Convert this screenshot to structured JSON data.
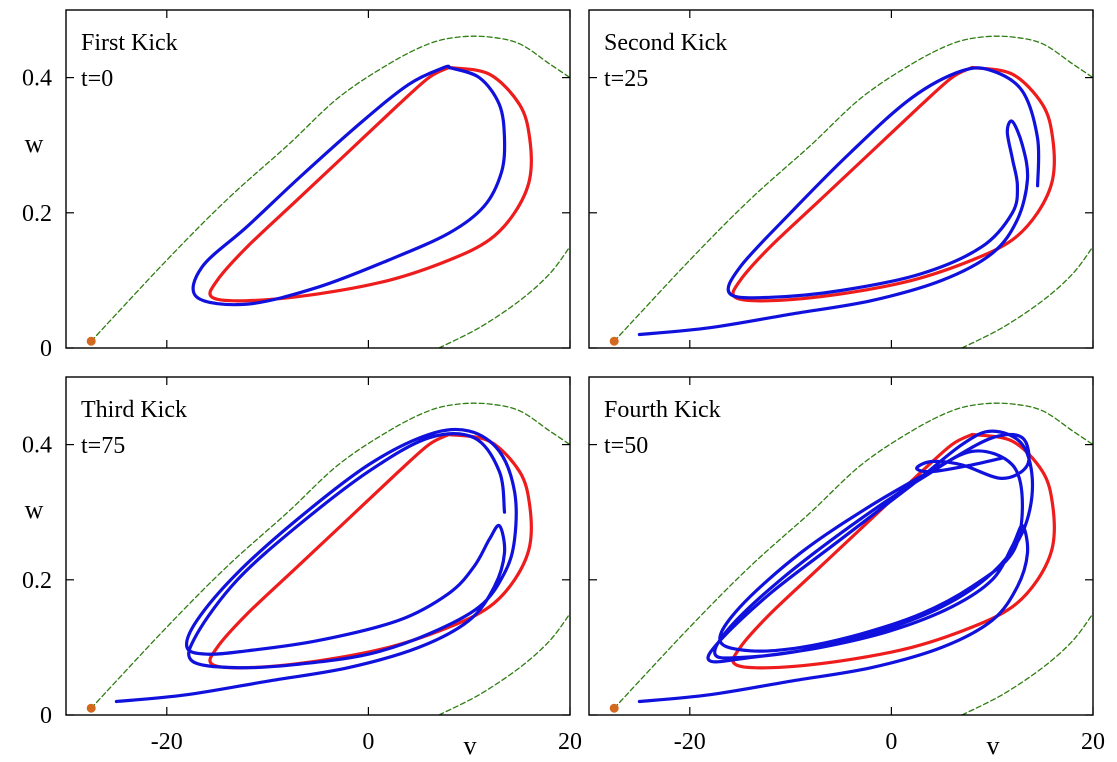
{
  "figure": {
    "x_axis_label": "v",
    "y_axis_label": "w"
  },
  "chart_data": [
    {
      "type": "line",
      "title": "First Kick",
      "subtitle": "t=0",
      "xlabel": "",
      "ylabel": "w",
      "xlim": [
        -30,
        20
      ],
      "ylim": [
        0,
        0.5
      ],
      "x_ticks": [
        "-20",
        "0",
        "20"
      ],
      "y_ticks": [
        "0",
        "0.2",
        "0.4"
      ],
      "show_x_tick_labels": false,
      "show_y_tick_labels": true,
      "grid": false,
      "colors": {
        "limit_cycle": "#ee1c1c",
        "trajectory": "#1111dd",
        "nullcline": "#2e7d12",
        "fixed_point": "#d2691e"
      },
      "point": {
        "x": -27.5,
        "y": 0.01
      },
      "series": [
        {
          "role": "nullcline",
          "style": "dashed",
          "color": "#2e7d12",
          "x": [
            -27.5,
            -20,
            -14,
            -8,
            -3,
            2,
            6,
            9,
            12,
            15,
            18,
            20
          ],
          "y": [
            0.01,
            0.13,
            0.22,
            0.3,
            0.37,
            0.42,
            0.45,
            0.46,
            0.46,
            0.45,
            0.42,
            0.4
          ]
        },
        {
          "role": "nullcline",
          "style": "dashed",
          "color": "#2e7d12",
          "x": [
            7,
            11,
            15,
            18,
            20
          ],
          "y": [
            0.0,
            0.03,
            0.07,
            0.11,
            0.15
          ]
        },
        {
          "role": "limit_cycle",
          "color": "#ee1c1c",
          "x": [
            8,
            12,
            15,
            16,
            16,
            14.5,
            12,
            8,
            2,
            -5,
            -12,
            -15.5,
            -15,
            -12,
            -7,
            -2,
            3,
            6,
            8
          ],
          "y": [
            0.415,
            0.405,
            0.36,
            0.31,
            0.25,
            0.2,
            0.16,
            0.13,
            0.1,
            0.08,
            0.07,
            0.075,
            0.1,
            0.15,
            0.22,
            0.29,
            0.36,
            0.4,
            0.415
          ]
        },
        {
          "role": "trajectory",
          "color": "#1111dd",
          "x": [
            8,
            11,
            13,
            13.5,
            13.2,
            11.5,
            8,
            2,
            -5,
            -12,
            -17,
            -16.5,
            -12,
            -7,
            -1,
            4,
            7.5,
            8
          ],
          "y": [
            0.415,
            0.4,
            0.36,
            0.31,
            0.26,
            0.21,
            0.17,
            0.13,
            0.09,
            0.065,
            0.075,
            0.12,
            0.18,
            0.25,
            0.33,
            0.39,
            0.415,
            0.415
          ]
        }
      ]
    },
    {
      "type": "line",
      "title": "Second Kick",
      "subtitle": "t=25",
      "xlabel": "",
      "ylabel": "",
      "xlim": [
        -30,
        20
      ],
      "ylim": [
        0,
        0.5
      ],
      "x_ticks": [
        "-20",
        "0",
        "20"
      ],
      "y_ticks": [
        "0",
        "0.2",
        "0.4"
      ],
      "show_x_tick_labels": false,
      "show_y_tick_labels": false,
      "grid": false,
      "colors": {
        "limit_cycle": "#ee1c1c",
        "trajectory": "#1111dd",
        "nullcline": "#2e7d12",
        "fixed_point": "#d2691e"
      },
      "point": {
        "x": -27.5,
        "y": 0.01
      },
      "series": [
        {
          "role": "nullcline",
          "style": "dashed",
          "color": "#2e7d12",
          "x": [
            -27.5,
            -20,
            -14,
            -8,
            -3,
            2,
            6,
            9,
            12,
            15,
            18,
            20
          ],
          "y": [
            0.01,
            0.13,
            0.22,
            0.3,
            0.37,
            0.42,
            0.45,
            0.46,
            0.46,
            0.45,
            0.42,
            0.4
          ]
        },
        {
          "role": "nullcline",
          "style": "dashed",
          "color": "#2e7d12",
          "x": [
            7,
            11,
            15,
            18,
            20
          ],
          "y": [
            0.0,
            0.03,
            0.07,
            0.11,
            0.15
          ]
        },
        {
          "role": "limit_cycle",
          "color": "#ee1c1c",
          "x": [
            8,
            12,
            15,
            16,
            16,
            14.5,
            12,
            8,
            2,
            -5,
            -12,
            -15.5,
            -15,
            -12,
            -7,
            -2,
            3,
            6,
            8
          ],
          "y": [
            0.415,
            0.405,
            0.36,
            0.31,
            0.25,
            0.2,
            0.16,
            0.13,
            0.1,
            0.08,
            0.07,
            0.075,
            0.1,
            0.15,
            0.22,
            0.29,
            0.36,
            0.4,
            0.415
          ]
        },
        {
          "role": "trajectory",
          "color": "#1111dd",
          "x": [
            -25,
            -18,
            -10,
            -2,
            5,
            10,
            12.5,
            13.5,
            13,
            12,
            11.5,
            12,
            12.5,
            12,
            9,
            3,
            -5,
            -12,
            -16,
            -15,
            -10,
            -4,
            2,
            7,
            10,
            13,
            14.5,
            14.5
          ],
          "y": [
            0.02,
            0.03,
            0.05,
            0.07,
            0.1,
            0.14,
            0.19,
            0.25,
            0.3,
            0.335,
            0.32,
            0.28,
            0.24,
            0.2,
            0.15,
            0.11,
            0.085,
            0.075,
            0.08,
            0.12,
            0.2,
            0.29,
            0.37,
            0.41,
            0.41,
            0.38,
            0.31,
            0.24
          ]
        }
      ]
    },
    {
      "type": "line",
      "title": "Third Kick",
      "subtitle": "t=75",
      "xlabel": "",
      "ylabel": "w",
      "xlim": [
        -30,
        20
      ],
      "ylim": [
        0,
        0.5
      ],
      "x_ticks": [
        "-20",
        "0",
        "20"
      ],
      "y_ticks": [
        "0",
        "0.2",
        "0.4"
      ],
      "show_x_tick_labels": true,
      "show_y_tick_labels": true,
      "grid": false,
      "colors": {
        "limit_cycle": "#ee1c1c",
        "trajectory": "#1111dd",
        "nullcline": "#2e7d12",
        "fixed_point": "#d2691e"
      },
      "point": {
        "x": -27.5,
        "y": 0.01
      },
      "series": [
        {
          "role": "nullcline",
          "style": "dashed",
          "color": "#2e7d12",
          "x": [
            -27.5,
            -20,
            -14,
            -8,
            -3,
            2,
            6,
            9,
            12,
            15,
            18,
            20
          ],
          "y": [
            0.01,
            0.13,
            0.22,
            0.3,
            0.37,
            0.42,
            0.45,
            0.46,
            0.46,
            0.45,
            0.42,
            0.4
          ]
        },
        {
          "role": "nullcline",
          "style": "dashed",
          "color": "#2e7d12",
          "x": [
            7,
            11,
            15,
            18,
            20
          ],
          "y": [
            0.0,
            0.03,
            0.07,
            0.11,
            0.15
          ]
        },
        {
          "role": "limit_cycle",
          "color": "#ee1c1c",
          "x": [
            8,
            12,
            15,
            16,
            16,
            14.5,
            12,
            8,
            2,
            -5,
            -12,
            -15.5,
            -15,
            -12,
            -7,
            -2,
            3,
            6,
            8
          ],
          "y": [
            0.415,
            0.405,
            0.36,
            0.31,
            0.25,
            0.2,
            0.16,
            0.13,
            0.1,
            0.08,
            0.07,
            0.075,
            0.1,
            0.15,
            0.22,
            0.29,
            0.36,
            0.4,
            0.415
          ]
        },
        {
          "role": "trajectory",
          "color": "#1111dd",
          "x": [
            -25,
            -18,
            -10,
            -2,
            5,
            10,
            12.5,
            13.5,
            13,
            12,
            10.5,
            8,
            3,
            -5,
            -12,
            -16,
            -18,
            -17,
            -13,
            -7,
            0,
            6,
            10,
            13,
            14.5,
            14.5,
            13.5,
            11,
            6,
            0,
            -7,
            -13,
            -17.5,
            -17,
            -13,
            -7,
            0,
            6,
            10.5,
            13,
            13.5
          ],
          "y": [
            0.02,
            0.03,
            0.05,
            0.07,
            0.1,
            0.14,
            0.19,
            0.24,
            0.28,
            0.26,
            0.22,
            0.18,
            0.14,
            0.11,
            0.095,
            0.09,
            0.1,
            0.14,
            0.21,
            0.29,
            0.37,
            0.415,
            0.42,
            0.39,
            0.33,
            0.26,
            0.21,
            0.16,
            0.12,
            0.09,
            0.075,
            0.07,
            0.08,
            0.12,
            0.2,
            0.28,
            0.36,
            0.41,
            0.41,
            0.36,
            0.3
          ]
        }
      ]
    },
    {
      "type": "line",
      "title": "Fourth Kick",
      "subtitle": "t=50",
      "xlabel": "",
      "ylabel": "",
      "xlim": [
        -30,
        20
      ],
      "ylim": [
        0,
        0.5
      ],
      "x_ticks": [
        "-20",
        "0",
        "20"
      ],
      "y_ticks": [
        "0",
        "0.2",
        "0.4"
      ],
      "show_x_tick_labels": true,
      "show_y_tick_labels": false,
      "grid": false,
      "colors": {
        "limit_cycle": "#ee1c1c",
        "trajectory": "#1111dd",
        "nullcline": "#2e7d12",
        "fixed_point": "#d2691e"
      },
      "point": {
        "x": -27.5,
        "y": 0.01
      },
      "series": [
        {
          "role": "nullcline",
          "style": "dashed",
          "color": "#2e7d12",
          "x": [
            -27.5,
            -20,
            -14,
            -8,
            -3,
            2,
            6,
            9,
            12,
            15,
            18,
            20
          ],
          "y": [
            0.01,
            0.13,
            0.22,
            0.3,
            0.37,
            0.42,
            0.45,
            0.46,
            0.46,
            0.45,
            0.42,
            0.4
          ]
        },
        {
          "role": "nullcline",
          "style": "dashed",
          "color": "#2e7d12",
          "x": [
            7,
            11,
            15,
            18,
            20
          ],
          "y": [
            0.0,
            0.03,
            0.07,
            0.11,
            0.15
          ]
        },
        {
          "role": "limit_cycle",
          "color": "#ee1c1c",
          "x": [
            8,
            12,
            15,
            16,
            16,
            14.5,
            12,
            8,
            2,
            -5,
            -12,
            -15.5,
            -15,
            -12,
            -7,
            -2,
            3,
            6,
            8
          ],
          "y": [
            0.415,
            0.405,
            0.36,
            0.31,
            0.25,
            0.2,
            0.16,
            0.13,
            0.1,
            0.08,
            0.07,
            0.075,
            0.1,
            0.15,
            0.22,
            0.29,
            0.36,
            0.4,
            0.415
          ]
        },
        {
          "role": "trajectory",
          "color": "#1111dd",
          "x": [
            -25,
            -18,
            -10,
            -2,
            5,
            10,
            12.5,
            13.5,
            13,
            12,
            10,
            6,
            0,
            -7,
            -14,
            -18,
            -17,
            -12,
            -5,
            2,
            7,
            10,
            13,
            14,
            13,
            10,
            5,
            -2,
            -9,
            -15,
            -17.5,
            -16,
            -11,
            -4,
            3,
            8,
            12,
            13,
            12,
            8,
            3,
            -3,
            -9,
            -14,
            -17,
            -15,
            -9,
            -2,
            5,
            10,
            13,
            13.5,
            11,
            7,
            4,
            2.5,
            4,
            8,
            11
          ],
          "y": [
            0.02,
            0.03,
            0.05,
            0.07,
            0.1,
            0.14,
            0.19,
            0.24,
            0.28,
            0.25,
            0.2,
            0.16,
            0.125,
            0.1,
            0.085,
            0.08,
            0.11,
            0.18,
            0.26,
            0.34,
            0.4,
            0.42,
            0.4,
            0.34,
            0.27,
            0.21,
            0.16,
            0.12,
            0.095,
            0.085,
            0.09,
            0.13,
            0.2,
            0.28,
            0.35,
            0.39,
            0.37,
            0.31,
            0.24,
            0.19,
            0.15,
            0.12,
            0.1,
            0.095,
            0.11,
            0.16,
            0.24,
            0.31,
            0.37,
            0.41,
            0.41,
            0.37,
            0.35,
            0.37,
            0.375,
            0.365,
            0.36,
            0.37,
            0.38
          ]
        }
      ]
    }
  ]
}
